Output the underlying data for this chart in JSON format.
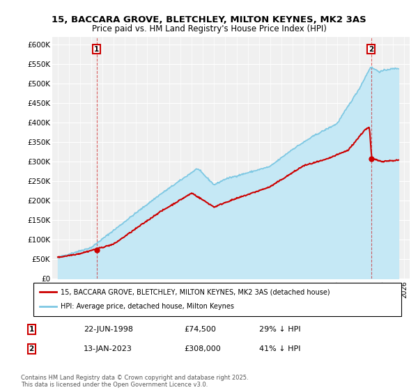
{
  "title": "15, BACCARA GROVE, BLETCHLEY, MILTON KEYNES, MK2 3AS",
  "subtitle": "Price paid vs. HM Land Registry's House Price Index (HPI)",
  "legend_entries": [
    "15, BACCARA GROVE, BLETCHLEY, MILTON KEYNES, MK2 3AS (detached house)",
    "HPI: Average price, detached house, Milton Keynes"
  ],
  "annotation1_date": "22-JUN-1998",
  "annotation1_price": "£74,500",
  "annotation1_hpi": "29% ↓ HPI",
  "annotation2_date": "13-JAN-2023",
  "annotation2_price": "£308,000",
  "annotation2_hpi": "41% ↓ HPI",
  "footer": "Contains HM Land Registry data © Crown copyright and database right 2025.\nThis data is licensed under the Open Government Licence v3.0.",
  "hpi_color": "#7ec8e3",
  "hpi_fill_color": "#c5e8f5",
  "sale_color": "#cc0000",
  "marker1_x": 1998.47,
  "marker1_y": 74500,
  "marker2_x": 2023.04,
  "marker2_y": 308000,
  "ylim": [
    0,
    620000
  ],
  "xlim": [
    1994.5,
    2026.5
  ],
  "yticks": [
    0,
    50000,
    100000,
    150000,
    200000,
    250000,
    300000,
    350000,
    400000,
    450000,
    500000,
    550000,
    600000
  ],
  "background_color": "#ffffff",
  "plot_background": "#f0f0f0"
}
